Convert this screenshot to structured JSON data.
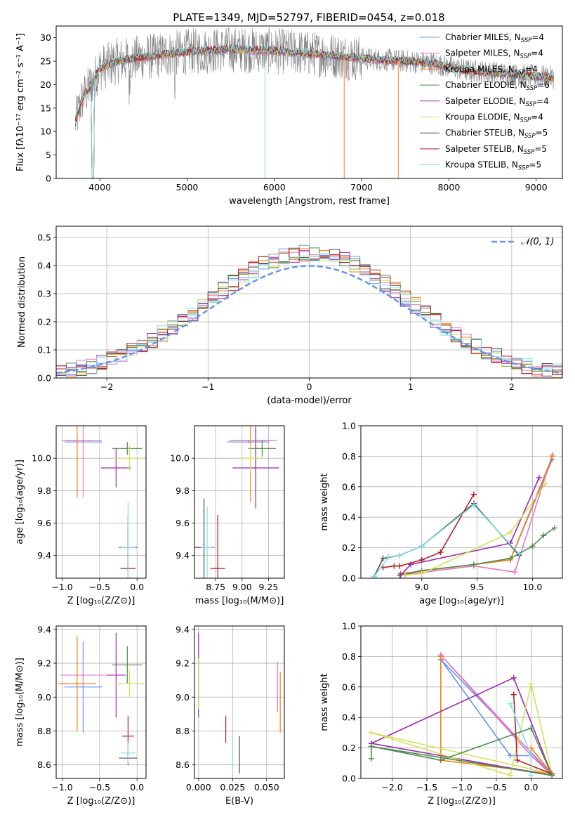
{
  "figure_title": "PLATE=1349, MJD=52797, FIBERID=0454, z=0.018",
  "legend_labels": [
    {
      "name": "Chabrier MILES, N",
      "sub": "SSP",
      "val": "=4",
      "color": "#6495ed"
    },
    {
      "name": "Salpeter MILES, N",
      "sub": "SSP",
      "val": "=4",
      "color": "#e377c2"
    },
    {
      "name": "Kroupa MILES, N",
      "sub": "SSP",
      "val": "=4",
      "color": "#ff7f0e"
    },
    {
      "name": "Chabrier ELODIE, N",
      "sub": "SSP",
      "val": "=6",
      "color": "#4a8c4a"
    },
    {
      "name": "Salpeter ELODIE, N",
      "sub": "SSP",
      "val": "=4",
      "color": "#9c27b0"
    },
    {
      "name": "Kroupa ELODIE, N",
      "sub": "SSP",
      "val": "=4",
      "color": "#d4e157"
    },
    {
      "name": "Chabrier STELIB, N",
      "sub": "SSP",
      "val": "=5",
      "color": "#4d4d4d"
    },
    {
      "name": "Salpeter STELIB, N",
      "sub": "SSP",
      "val": "=5",
      "color": "#b22222"
    },
    {
      "name": "Kroupa STELIB, N",
      "sub": "SSP",
      "val": "=5",
      "color": "#80deea"
    }
  ],
  "chart_data": [
    {
      "id": "spectrum",
      "type": "line",
      "xlabel": "wavelength [Angstrom, rest frame]",
      "ylabel": "Flux [fλ10⁻¹⁷ erg cm⁻² s⁻¹ A⁻¹]",
      "xlim": [
        3500,
        9300
      ],
      "ylim": [
        0,
        32.5
      ],
      "xticks": [
        4000,
        5000,
        6000,
        7000,
        8000,
        9000
      ],
      "yticks": [
        0,
        5,
        10,
        15,
        20,
        25,
        30
      ],
      "grid": false,
      "legend": "right",
      "continuum": [
        [
          3720,
          12
        ],
        [
          3800,
          17
        ],
        [
          3900,
          20
        ],
        [
          4000,
          23.5
        ],
        [
          4200,
          25
        ],
        [
          4500,
          25.8
        ],
        [
          5000,
          27
        ],
        [
          5500,
          27.5
        ],
        [
          6000,
          27.2
        ],
        [
          6500,
          26.5
        ],
        [
          7000,
          25.6
        ],
        [
          7500,
          25
        ],
        [
          7800,
          24.6
        ],
        [
          8000,
          23.8
        ],
        [
          8200,
          23
        ],
        [
          8500,
          22.6
        ],
        [
          8800,
          22
        ],
        [
          9000,
          21.8
        ],
        [
          9200,
          21.5
        ]
      ]
    },
    {
      "id": "residuals",
      "type": "step",
      "xlabel": "(data-model)/error",
      "ylabel": "Normed distribution",
      "xlim": [
        -2.5,
        2.5
      ],
      "ylim": [
        0,
        0.54
      ],
      "xticks": [
        -2,
        -1,
        0,
        1,
        2
      ],
      "yticks": [
        0.0,
        0.1,
        0.2,
        0.3,
        0.4,
        0.5
      ],
      "grid": true,
      "legend": "top-right",
      "reference_label": "𝒩(0, 1)",
      "reference_color": "#6495ed",
      "bin_width": 0.1
    },
    {
      "id": "age_vs_Z",
      "type": "scatter",
      "xlabel": "Z [log₁₀(Z/Z⊙)]",
      "ylabel": "age  [log₁₀(age/yr)]",
      "xlim": [
        -1.08,
        0.12
      ],
      "ylim": [
        9.26,
        10.2
      ],
      "xticks": [
        -1.0,
        -0.5,
        0.0
      ],
      "yticks": [
        9.4,
        9.6,
        9.8,
        10.0
      ],
      "grid": true,
      "points": [
        {
          "x": -0.72,
          "y": 10.1,
          "xerr": 0.25,
          "yerr": 0.01,
          "color": "#6495ed"
        },
        {
          "x": -0.8,
          "y": 10.11,
          "xerr": 0.2,
          "yerr": 0.35,
          "color": "#ff7f0e"
        },
        {
          "x": -0.72,
          "y": 10.11,
          "xerr": 0.25,
          "yerr": 0.35,
          "color": "#e377c2"
        },
        {
          "x": -0.13,
          "y": 10.06,
          "xerr": 0.2,
          "yerr": 0.04,
          "color": "#4a8c4a"
        },
        {
          "x": -0.28,
          "y": 9.94,
          "xerr": 0.2,
          "yerr": 0.12,
          "color": "#9c27b0"
        },
        {
          "x": -0.1,
          "y": 10.0,
          "xerr": 0.2,
          "yerr": 0.08,
          "color": "#d4e157"
        },
        {
          "x": -0.12,
          "y": 9.45,
          "xerr": 0.12,
          "yerr": 0.15,
          "color": "#4d4d4d"
        },
        {
          "x": -0.12,
          "y": 9.32,
          "xerr": 0.1,
          "yerr": 0.33,
          "color": "#b22222"
        },
        {
          "x": -0.12,
          "y": 9.45,
          "xerr": 0.1,
          "yerr": 0.28,
          "color": "#80deea"
        }
      ]
    },
    {
      "id": "age_vs_mass",
      "type": "scatter",
      "xlabel": "mass [log₁₀(M/M⊙)]",
      "ylabel": "",
      "xlim": [
        8.55,
        9.4
      ],
      "ylim": [
        9.26,
        10.2
      ],
      "xticks": [
        8.75,
        9.0,
        9.25
      ],
      "yticks": [
        9.4,
        9.6,
        9.8,
        10.0
      ],
      "grid": true,
      "points": [
        {
          "x": 9.06,
          "y": 10.1,
          "xerr": 0.2,
          "yerr": 0.01,
          "color": "#6495ed"
        },
        {
          "x": 9.08,
          "y": 10.11,
          "xerr": 0.2,
          "yerr": 0.38,
          "color": "#ff7f0e"
        },
        {
          "x": 9.13,
          "y": 10.11,
          "xerr": 0.2,
          "yerr": 0.35,
          "color": "#e377c2"
        },
        {
          "x": 9.19,
          "y": 10.06,
          "xerr": 0.13,
          "yerr": 0.05,
          "color": "#4a8c4a"
        },
        {
          "x": 9.13,
          "y": 9.94,
          "xerr": 0.22,
          "yerr": 0.25,
          "color": "#9c27b0"
        },
        {
          "x": 9.08,
          "y": 10.0,
          "xerr": 0.12,
          "yerr": 0.08,
          "color": "#d4e157"
        },
        {
          "x": 8.64,
          "y": 9.45,
          "xerr": 0.1,
          "yerr": 0.3,
          "color": "#4d4d4d"
        },
        {
          "x": 8.77,
          "y": 9.32,
          "xerr": 0.07,
          "yerr": 0.33,
          "color": "#b22222"
        },
        {
          "x": 8.67,
          "y": 9.45,
          "xerr": 0.06,
          "yerr": 0.25,
          "color": "#80deea"
        }
      ]
    },
    {
      "id": "weight_vs_age",
      "type": "line",
      "xlabel": "age  [log₁₀(age/yr)]",
      "ylabel": "mass weight",
      "xlim": [
        8.45,
        10.27
      ],
      "ylim": [
        0,
        1.0
      ],
      "xticks": [
        9.0,
        9.5,
        10.0
      ],
      "yticks": [
        0.0,
        0.2,
        0.4,
        0.6,
        0.8,
        1.0
      ],
      "grid": true,
      "series": [
        {
          "color": "#6495ed",
          "x": [
            8.81,
            9.8,
            10.18
          ],
          "y": [
            0.03,
            0.12,
            0.78
          ]
        },
        {
          "color": "#e377c2",
          "x": [
            8.81,
            9.47,
            9.84,
            10.18
          ],
          "y": [
            0.02,
            0.08,
            0.04,
            0.81
          ]
        },
        {
          "color": "#ff7f0e",
          "x": [
            8.81,
            9.8,
            10.18
          ],
          "y": [
            0.03,
            0.12,
            0.8
          ]
        },
        {
          "color": "#4a8c4a",
          "x": [
            8.8,
            9.0,
            9.47,
            9.8,
            10.0,
            10.1,
            10.2
          ],
          "y": [
            0.02,
            0.05,
            0.09,
            0.13,
            0.21,
            0.28,
            0.33
          ]
        },
        {
          "color": "#9c27b0",
          "x": [
            8.81,
            8.9,
            9.8,
            10.06
          ],
          "y": [
            0.02,
            0.09,
            0.23,
            0.66
          ]
        },
        {
          "color": "#d4e157",
          "x": [
            8.85,
            9.0,
            9.8,
            10.12
          ],
          "y": [
            0.02,
            0.03,
            0.3,
            0.62
          ]
        },
        {
          "color": "#4d4d4d",
          "x": [
            8.57,
            8.65,
            8.8,
            9.0,
            9.47,
            9.88
          ],
          "y": [
            0.01,
            0.13,
            0.15,
            0.21,
            0.49,
            0.15
          ]
        },
        {
          "color": "#b22222",
          "x": [
            8.65,
            8.75,
            8.8,
            9.0,
            9.17,
            9.47
          ],
          "y": [
            0.07,
            0.08,
            0.08,
            0.12,
            0.17,
            0.55
          ]
        },
        {
          "color": "#80deea",
          "x": [
            8.57,
            8.7,
            8.8,
            9.0,
            9.47,
            9.88
          ],
          "y": [
            0.01,
            0.14,
            0.15,
            0.21,
            0.48,
            0.16
          ]
        }
      ]
    },
    {
      "id": "mass_vs_Z",
      "type": "scatter",
      "xlabel": "Z [log₁₀(Z/Z⊙)]",
      "ylabel": "mass [log₁₀(M/M⊙)]",
      "xlim": [
        -1.08,
        0.12
      ],
      "ylim": [
        8.52,
        9.42
      ],
      "xticks": [
        -1.0,
        -0.5,
        0.0
      ],
      "yticks": [
        8.6,
        8.8,
        9.0,
        9.2,
        9.4
      ],
      "grid": true,
      "points": [
        {
          "x": -0.72,
          "y": 9.06,
          "xerr": 0.25,
          "yerr": 0.27,
          "color": "#6495ed"
        },
        {
          "x": -0.8,
          "y": 9.08,
          "xerr": 0.25,
          "yerr": 0.28,
          "color": "#ff7f0e"
        },
        {
          "x": -0.72,
          "y": 9.13,
          "xerr": 0.3,
          "yerr": 0.08,
          "color": "#e377c2"
        },
        {
          "x": -0.13,
          "y": 9.19,
          "xerr": 0.2,
          "yerr": 0.11,
          "color": "#4a8c4a"
        },
        {
          "x": -0.28,
          "y": 9.13,
          "xerr": 0.13,
          "yerr": 0.25,
          "color": "#9c27b0"
        },
        {
          "x": -0.1,
          "y": 9.08,
          "xerr": 0.2,
          "yerr": 0.08,
          "color": "#d4e157"
        },
        {
          "x": -0.12,
          "y": 8.64,
          "xerr": 0.12,
          "yerr": 0.04,
          "color": "#4d4d4d"
        },
        {
          "x": -0.12,
          "y": 8.77,
          "xerr": 0.08,
          "yerr": 0.12,
          "color": "#b22222"
        },
        {
          "x": -0.12,
          "y": 8.67,
          "xerr": 0.1,
          "yerr": 0.06,
          "color": "#80deea"
        }
      ]
    },
    {
      "id": "mass_vs_ebv",
      "type": "scatter",
      "xlabel": "E(B-V)",
      "ylabel": "",
      "xlim": [
        -0.003,
        0.063
      ],
      "ylim": [
        8.52,
        9.42
      ],
      "xticks": [
        0.0,
        0.025,
        0.05
      ],
      "xticklabels": [
        "0.000",
        "0.025",
        "0.050"
      ],
      "yticks": [
        8.6,
        8.8,
        9.0,
        9.2,
        9.4
      ],
      "grid": true,
      "points": [
        {
          "x": 0.0,
          "y": 9.13,
          "xerr": 0,
          "yerr": 0.25,
          "color": "#9c27b0"
        },
        {
          "x": 0.0,
          "y": 9.08,
          "xerr": 0,
          "yerr": 0.15,
          "color": "#d4e157"
        },
        {
          "x": 0.02,
          "y": 8.81,
          "xerr": 0,
          "yerr": 0.08,
          "color": "#b22222"
        },
        {
          "x": 0.025,
          "y": 8.68,
          "xerr": 0,
          "yerr": 0.09,
          "color": "#80deea"
        },
        {
          "x": 0.03,
          "y": 8.66,
          "xerr": 0,
          "yerr": 0.11,
          "color": "#4d4d4d"
        },
        {
          "x": 0.058,
          "y": 9.06,
          "xerr": 0,
          "yerr": 0.15,
          "color": "#e377c2"
        },
        {
          "x": 0.06,
          "y": 8.97,
          "xerr": 0,
          "yerr": 0.18,
          "color": "#ff7f0e"
        }
      ]
    },
    {
      "id": "weight_vs_Z",
      "type": "line",
      "xlabel": "Z [log₁₀(Z/Z⊙)]",
      "ylabel": "mass weight",
      "xlim": [
        -2.45,
        0.45
      ],
      "ylim": [
        0,
        1.0
      ],
      "xticks": [
        -2.0,
        -1.5,
        -1.0,
        -0.5,
        0.0
      ],
      "yticks": [
        0.0,
        0.2,
        0.4,
        0.6,
        0.8,
        1.0
      ],
      "grid": true,
      "series": [
        {
          "color": "#6495ed",
          "x": [
            -1.3,
            -0.3,
            0.0,
            0.3,
            -1.3
          ],
          "y": [
            0.78,
            0.15,
            0.15,
            0.03,
            0.78
          ]
        },
        {
          "color": "#e377c2",
          "x": [
            -1.3,
            0.0,
            0.3,
            -1.3
          ],
          "y": [
            0.81,
            0.15,
            0.02,
            0.81
          ]
        },
        {
          "color": "#ff7f0e",
          "x": [
            -1.3,
            -1.3,
            0.3,
            0.0
          ],
          "y": [
            0.8,
            0.12,
            0.03,
            0.2
          ]
        },
        {
          "color": "#9c27b0",
          "x": [
            -2.3,
            -0.25,
            0.3,
            -2.3
          ],
          "y": [
            0.23,
            0.66,
            0.02,
            0.23
          ]
        },
        {
          "color": "#d4e157",
          "x": [
            -2.3,
            -0.3,
            0.0,
            0.3,
            -2.3
          ],
          "y": [
            0.3,
            0.02,
            0.62,
            0.03,
            0.3
          ]
        },
        {
          "color": "#b22222",
          "x": [
            -0.25,
            -0.2,
            0.3
          ],
          "y": [
            0.55,
            0.12,
            0.03
          ]
        },
        {
          "color": "#80deea",
          "x": [
            -0.3,
            0.0,
            0.0
          ],
          "y": [
            0.49,
            0.15,
            0.02
          ]
        },
        {
          "color": "#4a8c4a",
          "x": [
            -2.3,
            -2.3,
            -1.3,
            0.0,
            0.3,
            -2.3
          ],
          "y": [
            0.13,
            0.21,
            0.12,
            0.33,
            0.02,
            0.21
          ]
        }
      ]
    }
  ]
}
